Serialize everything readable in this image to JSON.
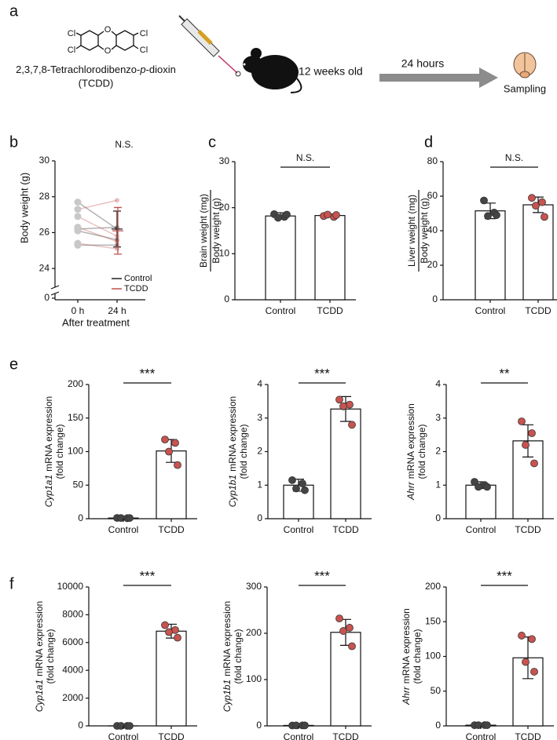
{
  "schematic": {
    "panel_label": "a",
    "atoms": [
      "Cl",
      "Cl",
      "O",
      "Cl",
      "Cl",
      "O"
    ],
    "name_before": "2,3,7,8-Tetrachlorodibenzo-",
    "name_italic": "p",
    "name_after": "-dioxin",
    "abbreviation": "(TCDD)",
    "mouse_label": "12 weeks old",
    "duration": "24 hours",
    "endpoint": "Sampling"
  },
  "chart_data": [
    {
      "type": "line",
      "panel_label": "b",
      "ylabel": "Body weight (g)",
      "xlabel": "After treatment",
      "significance": "N.S.",
      "categories": [
        "0 h",
        "24 h"
      ],
      "ylim": [
        23,
        30
      ],
      "yticks": [
        24,
        26,
        28,
        30
      ],
      "ybreak_tick": 0,
      "series": [
        {
          "name": "Control",
          "color": "#222222",
          "subjects": [
            [
              27.7,
              26.2
            ],
            [
              26.2,
              26.3
            ],
            [
              26.1,
              25.6
            ],
            [
              25.3,
              25.3
            ]
          ],
          "mean_24h": 26.2,
          "sd_24h": 1.0
        },
        {
          "name": "TCDD",
          "color": "#c0504d",
          "subjects": [
            [
              27.3,
              27.8
            ],
            [
              26.9,
              25.8
            ],
            [
              26.3,
              25.5
            ],
            [
              25.4,
              25.1
            ]
          ],
          "mean_24h": 26.1,
          "sd_24h": 1.3
        }
      ]
    },
    {
      "type": "bar",
      "panel_label": "c",
      "ylabel_numerator": "Brain weight (mg)",
      "ylabel_denominator": "Body weight (g)",
      "significance": "N.S.",
      "categories": [
        "Control",
        "TCDD"
      ],
      "values": [
        18.2,
        18.3
      ],
      "errors": [
        0.7,
        0.3
      ],
      "points": [
        [
          18.6,
          18.0,
          17.8,
          18.5
        ],
        [
          18.2,
          18.0,
          18.5,
          18.4
        ]
      ],
      "point_colors": [
        "#444444",
        "#c8534f"
      ],
      "ylim": [
        0,
        30
      ],
      "yticks": [
        0,
        10,
        20,
        30
      ]
    },
    {
      "type": "bar",
      "panel_label": "d",
      "ylabel_numerator": "Liver weight (mg)",
      "ylabel_denominator": "Body weight (g)",
      "significance": "N.S.",
      "categories": [
        "Control",
        "TCDD"
      ],
      "values": [
        51.5,
        55
      ],
      "errors": [
        4.5,
        4.5
      ],
      "points": [
        [
          57.5,
          50.5,
          48.5,
          49
        ],
        [
          59,
          56.5,
          54.5,
          48
        ]
      ],
      "point_colors": [
        "#444444",
        "#c8534f"
      ],
      "ylim": [
        0,
        80
      ],
      "yticks": [
        0,
        20,
        40,
        60,
        80
      ]
    },
    {
      "type": "bar",
      "panel_label": "e",
      "ylabel_italic": "Cyp1a1",
      "ylabel": "mRNA expression",
      "ylabel_line2": "(fold change)",
      "significance": "***",
      "categories": [
        "Control",
        "TCDD"
      ],
      "values": [
        1,
        101
      ],
      "errors": [
        0.3,
        17
      ],
      "points": [
        [
          1.2,
          0.8,
          1.0,
          1.0
        ],
        [
          118,
          113,
          100,
          80
        ]
      ],
      "point_colors": [
        "#444444",
        "#c8534f"
      ],
      "ylim": [
        0,
        200
      ],
      "yticks": [
        0,
        50,
        100,
        150,
        200
      ]
    },
    {
      "type": "bar",
      "ylabel_italic": "Cyp1b1",
      "ylabel": "mRNA expression",
      "ylabel_line2": "(fold change)",
      "significance": "***",
      "categories": [
        "Control",
        "TCDD"
      ],
      "values": [
        1,
        3.27
      ],
      "errors": [
        0.18,
        0.37
      ],
      "points": [
        [
          1.15,
          1.05,
          0.9,
          0.85
        ],
        [
          3.55,
          3.4,
          3.35,
          2.8
        ]
      ],
      "point_colors": [
        "#444444",
        "#c8534f"
      ],
      "ylim": [
        0,
        4
      ],
      "yticks": [
        0,
        1,
        2,
        3,
        4
      ]
    },
    {
      "type": "bar",
      "ylabel_italic": "Ahrr",
      "ylabel": "mRNA expression",
      "ylabel_line2": "(fold change)",
      "significance": "**",
      "categories": [
        "Control",
        "TCDD"
      ],
      "values": [
        1,
        2.32
      ],
      "errors": [
        0.1,
        0.48
      ],
      "points": [
        [
          1.1,
          1.0,
          0.95,
          0.95
        ],
        [
          2.9,
          2.55,
          2.2,
          1.65
        ]
      ],
      "point_colors": [
        "#444444",
        "#c8534f"
      ],
      "ylim": [
        0,
        4
      ],
      "yticks": [
        0,
        1,
        2,
        3,
        4
      ]
    },
    {
      "type": "bar",
      "panel_label": "f",
      "ylabel_italic": "Cyp1a1",
      "ylabel": "mRNA expression",
      "ylabel_line2": "(fold change)",
      "significance": "***",
      "categories": [
        "Control",
        "TCDD"
      ],
      "values": [
        1,
        6820
      ],
      "errors": [
        0.3,
        500
      ],
      "points": [
        [
          0.5,
          1.2,
          1.0,
          1.3
        ],
        [
          7250,
          6900,
          6750,
          6350
        ]
      ],
      "point_colors": [
        "#444444",
        "#c8534f"
      ],
      "ylim": [
        0,
        10000
      ],
      "yticks": [
        0,
        2000,
        4000,
        6000,
        8000,
        10000
      ]
    },
    {
      "type": "bar",
      "ylabel_italic": "Cyp1b1",
      "ylabel": "mRNA expression",
      "ylabel_line2": "(fold change)",
      "significance": "***",
      "categories": [
        "Control",
        "TCDD"
      ],
      "values": [
        1,
        202
      ],
      "errors": [
        0.3,
        28
      ],
      "points": [
        [
          0.8,
          1.1,
          1.0,
          1.1
        ],
        [
          232,
          212,
          205,
          172
        ]
      ],
      "point_colors": [
        "#444444",
        "#c8534f"
      ],
      "ylim": [
        0,
        300
      ],
      "yticks": [
        0,
        100,
        200,
        300
      ]
    },
    {
      "type": "bar",
      "ylabel_italic": "Ahrr",
      "ylabel": "mRNA expression",
      "ylabel_line2": "(fold change)",
      "significance": "***",
      "categories": [
        "Control",
        "TCDD"
      ],
      "values": [
        1,
        98
      ],
      "errors": [
        0.3,
        30
      ],
      "points": [
        [
          0.9,
          1.1,
          1.0,
          1.0
        ],
        [
          130,
          125,
          92,
          78
        ]
      ],
      "point_colors": [
        "#444444",
        "#c8534f"
      ],
      "ylim": [
        0,
        200
      ],
      "yticks": [
        0,
        50,
        100,
        150,
        200
      ]
    }
  ]
}
